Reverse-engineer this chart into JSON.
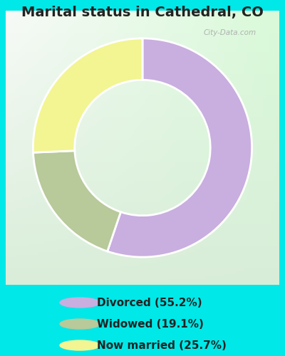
{
  "title": "Marital status in Cathedral, CO",
  "slices": [
    55.2,
    19.1,
    25.7
  ],
  "colors": [
    "#c9aee0",
    "#b8c99a",
    "#f2f591"
  ],
  "labels": [
    "Divorced (55.2%)",
    "Widowed (19.1%)",
    "Now married (25.7%)"
  ],
  "legend_colors": [
    "#c9aee0",
    "#b8c99a",
    "#f2f591"
  ],
  "bg_outer": "#00e8e8",
  "bg_chart": "#d4ede0",
  "watermark": "City-Data.com",
  "title_fontsize": 14,
  "legend_fontsize": 11,
  "donut_width": 0.38,
  "start_angle": 90
}
